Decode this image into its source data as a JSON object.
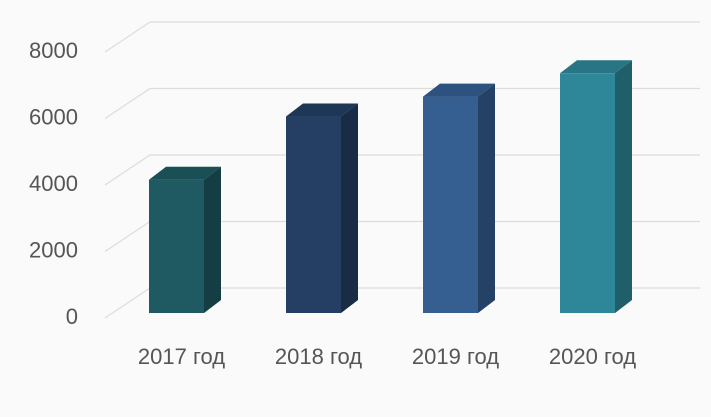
{
  "chart_data": {
    "type": "bar3d",
    "categories": [
      "2017 год",
      "2018 год",
      "2019 год",
      "2020 год"
    ],
    "values": [
      4400,
      6300,
      6900,
      7600
    ],
    "colors": [
      "#1f5a62",
      "#243f63",
      "#355e91",
      "#2e8798"
    ],
    "ylim": [
      0,
      8000
    ],
    "yticks": [
      0,
      2000,
      4000,
      6000,
      8000
    ],
    "grid": true
  }
}
